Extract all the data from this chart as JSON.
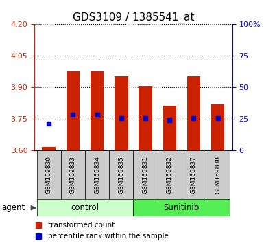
{
  "title": "GDS3109 / 1385541_at",
  "samples": [
    "GSM159830",
    "GSM159833",
    "GSM159834",
    "GSM159835",
    "GSM159831",
    "GSM159832",
    "GSM159837",
    "GSM159838"
  ],
  "red_values": [
    3.618,
    3.975,
    3.975,
    3.955,
    3.905,
    3.815,
    3.955,
    3.82
  ],
  "blue_values": [
    3.73,
    3.77,
    3.772,
    3.755,
    3.755,
    3.745,
    3.755,
    3.755
  ],
  "y_min": 3.6,
  "y_max": 4.2,
  "y_ticks_red": [
    3.6,
    3.75,
    3.9,
    4.05,
    4.2
  ],
  "y_ticks_blue_val": [
    0,
    25,
    50,
    75,
    100
  ],
  "groups": [
    {
      "label": "control",
      "indices": [
        0,
        1,
        2,
        3
      ],
      "color": "#ccffcc"
    },
    {
      "label": "Sunitinib",
      "indices": [
        4,
        5,
        6,
        7
      ],
      "color": "#55ee55"
    }
  ],
  "bar_color": "#cc2200",
  "dot_color": "#0000cc",
  "bar_width": 0.55,
  "title_fontsize": 11,
  "legend_red": "transformed count",
  "legend_blue": "percentile rank within the sample",
  "agent_label": "agent",
  "right_axis_color": "#0000cc",
  "left_axis_color": "#cc2200",
  "sample_box_color": "#cccccc",
  "plot_bg": "#ffffff"
}
